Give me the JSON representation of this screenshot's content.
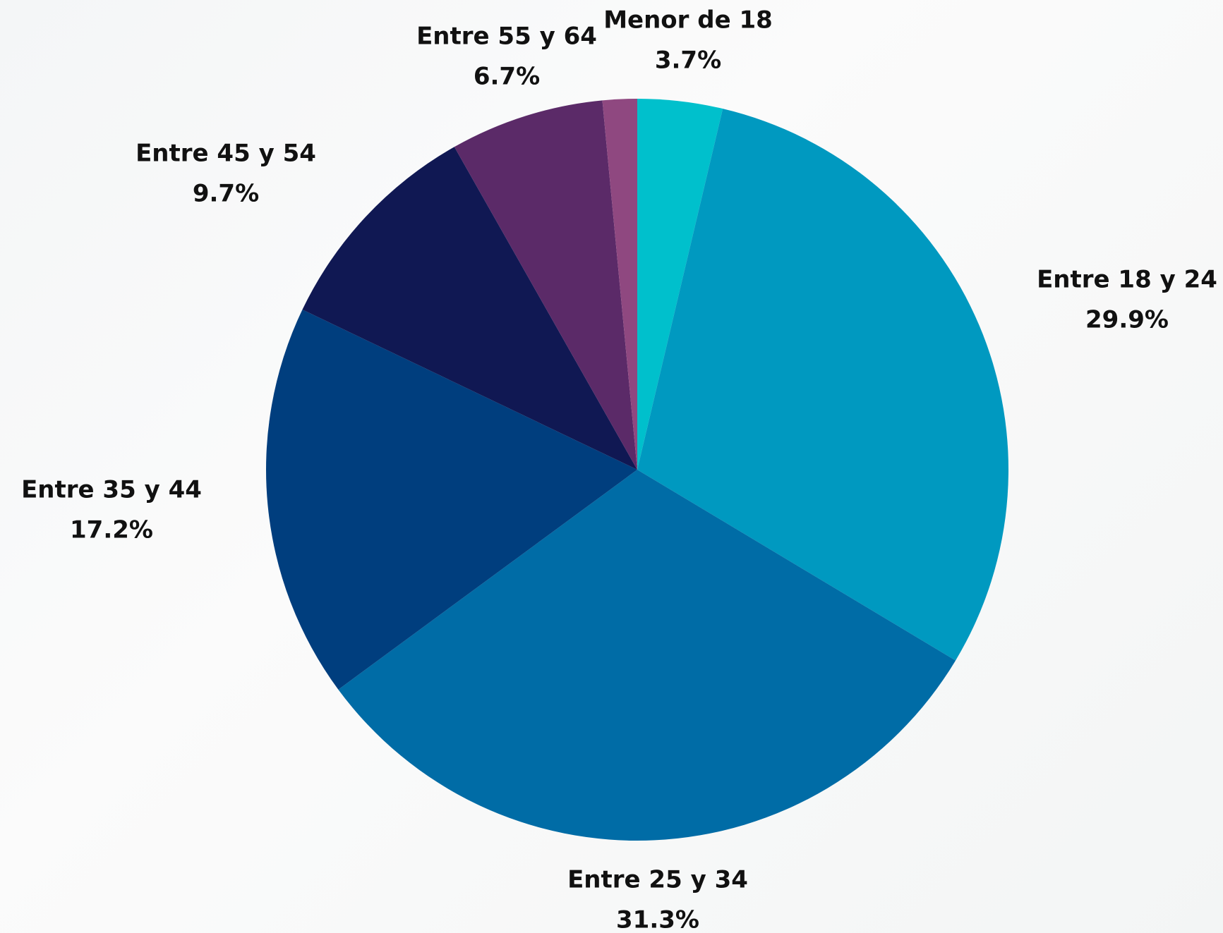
{
  "chart_data": {
    "type": "pie",
    "categories": [
      "Menor de 18",
      "Entre 18 y 24",
      "Entre 25 y 34",
      "Entre 35 y 44",
      "Entre 45 y 54",
      "Entre 55 y 64",
      null
    ],
    "values": [
      3.7,
      29.9,
      31.3,
      17.2,
      9.7,
      6.7,
      1.5
    ],
    "value_labels": [
      "3.7%",
      "29.9%",
      "31.3%",
      "17.2%",
      "9.7%",
      "6.7%",
      null
    ],
    "colors": [
      "#00c0cc",
      "#0099c0",
      "#006ca6",
      "#003e7e",
      "#101853",
      "#5b2a68",
      "#8f4880"
    ]
  }
}
